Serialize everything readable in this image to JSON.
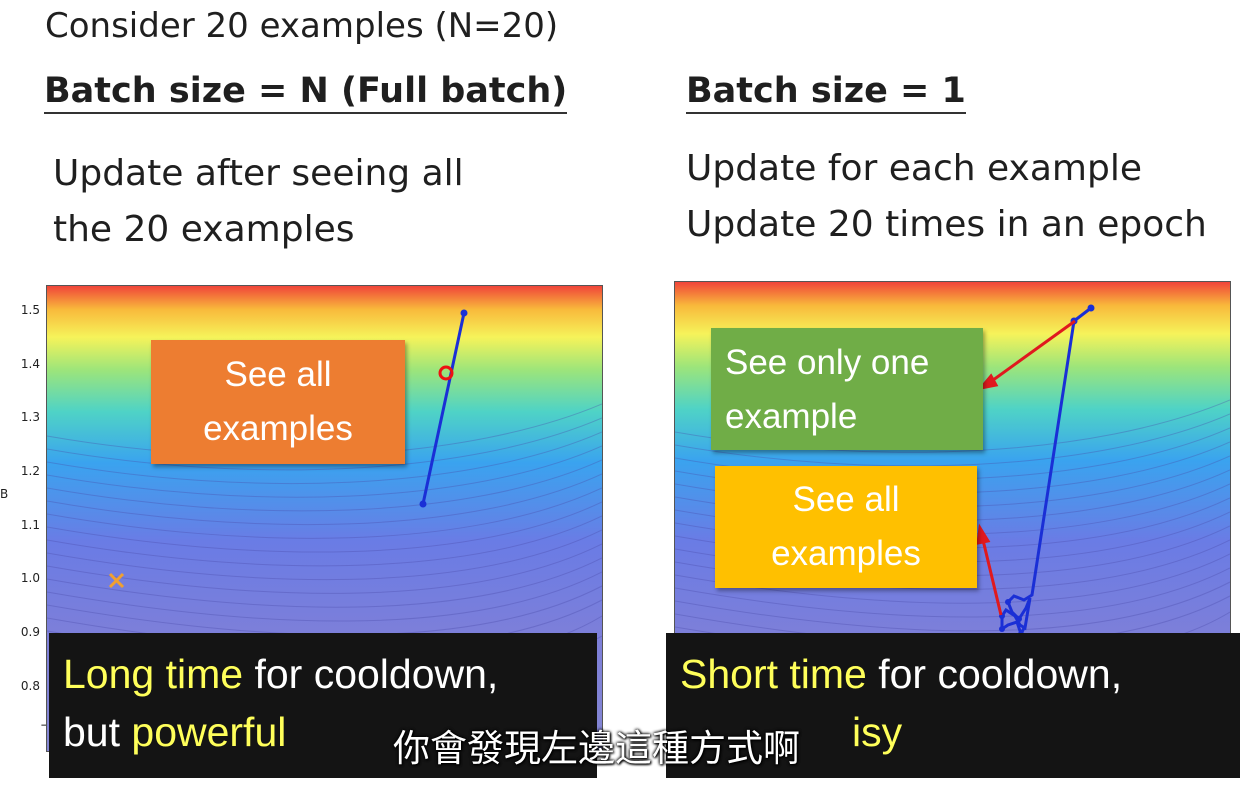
{
  "slide": {
    "intro": "Consider 20 examples (N=20)",
    "left": {
      "heading": "Batch size = N (Full batch)",
      "line1": "Update after seeing all",
      "line2": "the 20 examples",
      "callout": [
        "See all",
        "examples"
      ],
      "y_ticks": [
        "1.5",
        "1.4",
        "1.3",
        "1.2",
        "1.1",
        "1.0",
        "0.9",
        "0.8"
      ],
      "y_axis_label_fragment": "B",
      "x_tick_fragment": "−0",
      "caption_line1_highlight": "Long time",
      "caption_line1_rest": " for cooldown,",
      "caption_line2_plain": "but ",
      "caption_line2_highlight": "powerful"
    },
    "right": {
      "heading": "Batch size = 1",
      "line1": "Update for each example",
      "line2": "Update 20 times in an epoch",
      "callout_green": [
        "See only one",
        "example"
      ],
      "callout_yellow": [
        "See all",
        "examples"
      ],
      "caption_line1_highlight": "Short time",
      "caption_line1_rest": " for cooldown,",
      "caption_line2_visible": "isy"
    }
  },
  "subtitle": "你會發現左邊這種方式啊",
  "colors": {
    "orange_callout": "#ed7d31",
    "green_callout": "#70ad47",
    "yellow_callout": "#ffc000",
    "caption_highlight": "#ffff5a",
    "path_blue": "#1a2fd6",
    "arrow_red": "#e0191e"
  }
}
